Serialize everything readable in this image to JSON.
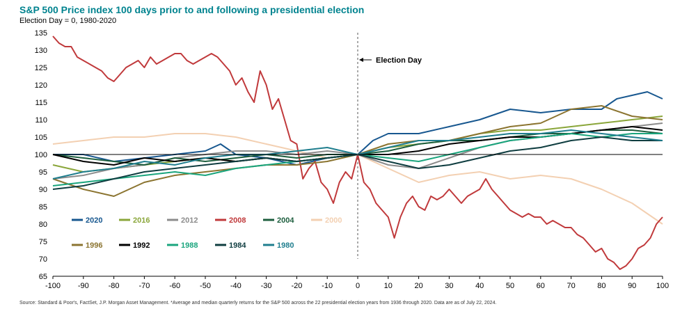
{
  "chart_data": {
    "type": "line",
    "title": "S&P 500 Price index 100 days prior to and following a presidential election",
    "subtitle": "Election Day = 0, 1980-2020",
    "xlabel": "",
    "ylabel": "",
    "xlim": [
      -100,
      100
    ],
    "ylim": [
      65,
      135
    ],
    "x_ticks": [
      -100,
      -90,
      -80,
      -70,
      -60,
      -50,
      -40,
      -30,
      -20,
      -10,
      0,
      10,
      20,
      30,
      40,
      50,
      60,
      70,
      80,
      90,
      100
    ],
    "y_ticks": [
      65,
      70,
      75,
      80,
      85,
      90,
      95,
      100,
      105,
      110,
      115,
      120,
      125,
      130,
      135
    ],
    "grid": false,
    "baseline": 100,
    "annotation": {
      "text": "Election Day",
      "x": 0
    },
    "legend_position": "bottom-left",
    "source": "Source: Standard & Poor's, FactSet, J.P. Morgan Asset Management. *Average and median quarterly returns for the S&P 500 across the 22 presidential election years from 1936 through 2020. Data are as of July 22, 2024.",
    "series": [
      {
        "name": "2020",
        "color": "#17578f",
        "x": [
          -100,
          -90,
          -80,
          -70,
          -60,
          -50,
          -45,
          -40,
          -30,
          -20,
          -10,
          0,
          5,
          10,
          20,
          30,
          40,
          50,
          60,
          70,
          80,
          85,
          90,
          95,
          100
        ],
        "y": [
          100,
          100,
          98,
          99,
          100,
          101,
          103,
          100,
          99,
          97,
          99,
          100,
          104,
          106,
          106,
          108,
          110,
          113,
          112,
          113,
          113,
          116,
          117,
          118,
          116
        ]
      },
      {
        "name": "2016",
        "color": "#8aa63a",
        "x": [
          -100,
          -90,
          -80,
          -70,
          -60,
          -50,
          -40,
          -30,
          -20,
          -10,
          0,
          10,
          20,
          30,
          40,
          50,
          60,
          70,
          80,
          90,
          100
        ],
        "y": [
          97,
          95,
          96,
          97,
          98,
          99,
          98,
          99,
          98,
          99,
          100,
          102,
          103,
          104,
          106,
          107,
          107,
          108,
          109,
          110,
          111
        ]
      },
      {
        "name": "2012",
        "color": "#8c8c8c",
        "x": [
          -100,
          -90,
          -80,
          -70,
          -60,
          -50,
          -40,
          -30,
          -20,
          -10,
          0,
          10,
          20,
          30,
          40,
          50,
          60,
          70,
          80,
          90,
          100
        ],
        "y": [
          93,
          94,
          96,
          97,
          99,
          100,
          101,
          101,
          100,
          101,
          100,
          97,
          96,
          99,
          102,
          104,
          105,
          106,
          107,
          108,
          109
        ]
      },
      {
        "name": "2008",
        "color": "#c0393b",
        "x": [
          -100,
          -98,
          -96,
          -94,
          -92,
          -90,
          -88,
          -86,
          -84,
          -82,
          -80,
          -78,
          -76,
          -74,
          -72,
          -70,
          -68,
          -66,
          -64,
          -62,
          -60,
          -58,
          -56,
          -54,
          -52,
          -50,
          -48,
          -46,
          -44,
          -42,
          -40,
          -38,
          -36,
          -34,
          -32,
          -30,
          -28,
          -26,
          -24,
          -22,
          -20,
          -18,
          -16,
          -14,
          -12,
          -10,
          -8,
          -6,
          -4,
          -2,
          0,
          2,
          4,
          6,
          8,
          10,
          12,
          14,
          16,
          18,
          20,
          22,
          24,
          26,
          28,
          30,
          32,
          34,
          36,
          38,
          40,
          42,
          44,
          46,
          48,
          50,
          52,
          54,
          56,
          58,
          60,
          62,
          64,
          66,
          68,
          70,
          72,
          74,
          76,
          78,
          80,
          82,
          84,
          86,
          88,
          90,
          92,
          94,
          96,
          98,
          100
        ],
        "y": [
          134,
          132,
          131,
          131,
          128,
          127,
          126,
          125,
          124,
          122,
          121,
          123,
          125,
          126,
          127,
          125,
          128,
          126,
          127,
          128,
          129,
          129,
          127,
          126,
          127,
          128,
          129,
          128,
          126,
          124,
          120,
          122,
          118,
          115,
          124,
          120,
          113,
          116,
          110,
          104,
          103,
          93,
          96,
          98,
          92,
          90,
          86,
          92,
          95,
          93,
          100,
          92,
          90,
          86,
          84,
          82,
          76,
          82,
          86,
          88,
          85,
          84,
          88,
          87,
          88,
          90,
          88,
          86,
          88,
          89,
          90,
          93,
          90,
          88,
          86,
          84,
          83,
          82,
          83,
          82,
          82,
          80,
          81,
          80,
          79,
          79,
          77,
          76,
          74,
          72,
          73,
          70,
          69,
          67,
          68,
          70,
          73,
          74,
          76,
          80,
          82
        ]
      },
      {
        "name": "2004",
        "color": "#1d5e3e",
        "x": [
          -100,
          -90,
          -80,
          -70,
          -60,
          -50,
          -40,
          -30,
          -20,
          -10,
          0,
          10,
          20,
          30,
          40,
          50,
          60,
          70,
          80,
          90,
          100
        ],
        "y": [
          100,
          99,
          98,
          97,
          99,
          98,
          99,
          100,
          99,
          100,
          100,
          101,
          103,
          104,
          104,
          105,
          106,
          106,
          107,
          107,
          106
        ]
      },
      {
        "name": "2000",
        "color": "#f3d0b2",
        "x": [
          -100,
          -90,
          -80,
          -70,
          -60,
          -50,
          -40,
          -30,
          -20,
          -10,
          0,
          10,
          20,
          30,
          40,
          50,
          60,
          70,
          80,
          90,
          100
        ],
        "y": [
          103,
          104,
          105,
          105,
          106,
          106,
          105,
          103,
          101,
          99,
          100,
          96,
          92,
          94,
          95,
          93,
          94,
          93,
          90,
          86,
          80
        ]
      },
      {
        "name": "1996",
        "color": "#8b7430",
        "x": [
          -100,
          -90,
          -80,
          -70,
          -60,
          -50,
          -40,
          -30,
          -20,
          -10,
          0,
          10,
          20,
          30,
          40,
          50,
          60,
          70,
          80,
          90,
          100
        ],
        "y": [
          93,
          90,
          88,
          92,
          94,
          95,
          96,
          97,
          97,
          98,
          100,
          103,
          104,
          104,
          106,
          108,
          109,
          113,
          114,
          111,
          110
        ]
      },
      {
        "name": "1992",
        "color": "#000000",
        "x": [
          -100,
          -90,
          -80,
          -70,
          -60,
          -50,
          -40,
          -30,
          -20,
          -10,
          0,
          10,
          20,
          30,
          40,
          50,
          60,
          70,
          80,
          90,
          100
        ],
        "y": [
          100,
          98,
          97,
          99,
          98,
          99,
          98,
          99,
          98,
          99,
          100,
          100,
          101,
          103,
          104,
          105,
          105,
          106,
          107,
          108,
          107
        ]
      },
      {
        "name": "1988",
        "color": "#1aa57d",
        "x": [
          -100,
          -90,
          -80,
          -70,
          -60,
          -50,
          -40,
          -30,
          -20,
          -10,
          0,
          10,
          20,
          30,
          40,
          50,
          60,
          70,
          80,
          90,
          100
        ],
        "y": [
          91,
          92,
          93,
          94,
          95,
          94,
          96,
          97,
          98,
          99,
          100,
          99,
          98,
          100,
          102,
          104,
          105,
          106,
          105,
          106,
          106
        ]
      },
      {
        "name": "1984",
        "color": "#0f3d40",
        "x": [
          -100,
          -90,
          -80,
          -70,
          -60,
          -50,
          -40,
          -30,
          -20,
          -10,
          0,
          10,
          20,
          30,
          40,
          50,
          60,
          70,
          80,
          90,
          100
        ],
        "y": [
          90,
          91,
          93,
          95,
          96,
          97,
          98,
          99,
          98,
          99,
          100,
          98,
          96,
          97,
          99,
          101,
          102,
          104,
          105,
          104,
          104
        ]
      },
      {
        "name": "1980",
        "color": "#1f7e8e",
        "x": [
          -100,
          -90,
          -80,
          -70,
          -60,
          -50,
          -40,
          -30,
          -20,
          -10,
          0,
          10,
          20,
          30,
          40,
          50,
          60,
          70,
          80,
          90,
          100
        ],
        "y": [
          93,
          95,
          96,
          98,
          97,
          99,
          100,
          100,
          101,
          102,
          100,
          102,
          104,
          104,
          105,
          106,
          106,
          107,
          106,
          105,
          104
        ]
      }
    ]
  }
}
